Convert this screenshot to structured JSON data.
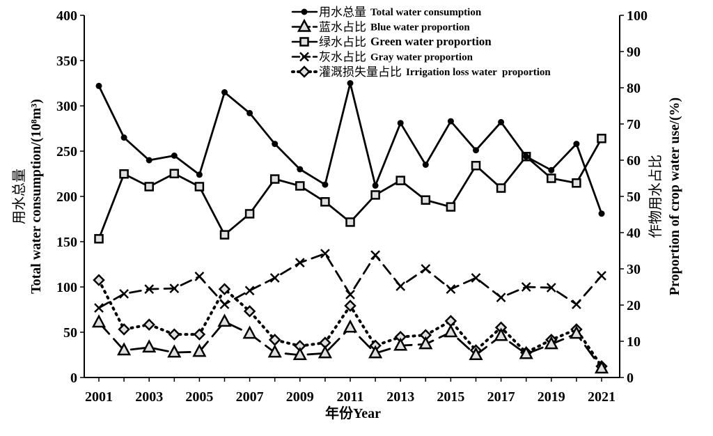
{
  "chart_data": {
    "type": "line",
    "x": [
      2001,
      2002,
      2003,
      2004,
      2005,
      2006,
      2007,
      2008,
      2009,
      2010,
      2011,
      2012,
      2013,
      2014,
      2015,
      2016,
      2017,
      2018,
      2019,
      2020,
      2021
    ],
    "xlabel": "年份Year",
    "xticklabels": [
      "2001",
      "2003",
      "2005",
      "2007",
      "2009",
      "2011",
      "2013",
      "2015",
      "2017",
      "2019",
      "2021"
    ],
    "ylabel_left_cn": "用水总量",
    "ylabel_left_en": "Total water consumption/(10⁸m³)",
    "ylabel_right_cn": "作物用水占比",
    "ylabel_right_en": "Proportion of crop water use/(%)",
    "ylim_left": [
      0,
      400
    ],
    "yticks_left": [
      "0",
      "50",
      "100",
      "150",
      "200",
      "250",
      "300",
      "350",
      "400"
    ],
    "ylim_right": [
      0,
      100
    ],
    "yticks_right": [
      "0",
      "10",
      "20",
      "30",
      "40",
      "50",
      "60",
      "70",
      "80",
      "90",
      "100"
    ],
    "legend_position": "top-center",
    "series": [
      {
        "name_cn": "用水总量",
        "name_en": "Total water consumption",
        "axis": "left",
        "marker": "circle",
        "dash": "solid",
        "values": [
          322,
          265,
          240,
          245,
          224,
          315,
          292,
          258,
          230,
          213,
          325,
          212,
          281,
          235,
          283,
          251,
          282,
          244,
          229,
          258,
          181
        ]
      },
      {
        "name_cn": "蓝水占比",
        "name_en": "Blue water proportion",
        "axis": "right",
        "marker": "triangle",
        "dash": "longdash",
        "values": [
          15.2,
          7.5,
          8.3,
          6.9,
          7.1,
          15.4,
          12.1,
          6.9,
          6.2,
          6.7,
          13.8,
          6.7,
          8.8,
          9.2,
          12.5,
          6.2,
          11.5,
          6.5,
          9.2,
          12.1,
          2.5
        ]
      },
      {
        "name_cn": "绿水占比",
        "name_en": "Green water proportion",
        "axis": "right",
        "marker": "square",
        "dash": "solid",
        "values": [
          38.3,
          56.2,
          52.7,
          56.3,
          52.7,
          39.4,
          45.2,
          54.8,
          52.9,
          48.5,
          42.9,
          50.4,
          54.4,
          49,
          47.1,
          58.5,
          52.3,
          61,
          55,
          53.7,
          66
        ]
      },
      {
        "name_cn": "灰水占比",
        "name_en": "Gray water proportion",
        "axis": "right",
        "marker": "x",
        "dash": "dash",
        "values": [
          19.2,
          23.1,
          24.4,
          24.6,
          27.9,
          20.2,
          24,
          27.5,
          31.7,
          34.2,
          22.9,
          33.8,
          25.2,
          30,
          24.4,
          27.5,
          22.1,
          25,
          24.8,
          20.2,
          28.1
        ]
      },
      {
        "name_cn": "灌溉损失量占比",
        "name_en": "Irrigation loss water  proportion",
        "axis": "right",
        "marker": "diamond",
        "dash": "dot",
        "values": [
          26.9,
          13.3,
          14.6,
          11.9,
          11.9,
          24.4,
          18.3,
          10.4,
          8.7,
          9.6,
          19.8,
          8.8,
          11.2,
          11.7,
          15.6,
          7.5,
          13.8,
          6.9,
          10.4,
          13.3,
          3.1
        ]
      }
    ]
  }
}
